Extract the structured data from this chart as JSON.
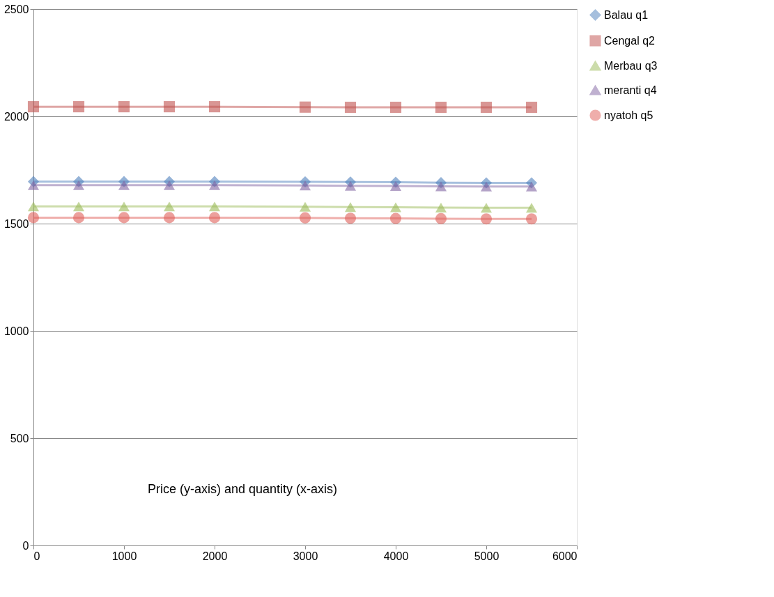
{
  "chart_data": {
    "type": "line",
    "x": [
      0,
      500,
      1000,
      1500,
      2000,
      3000,
      3500,
      4000,
      4500,
      5000,
      5500
    ],
    "series": [
      {
        "name": "Balau q1",
        "color": "#4f81bd",
        "marker": "diamond",
        "values": [
          1696,
          1696,
          1696,
          1696,
          1696,
          1695,
          1694,
          1693,
          1691,
          1690,
          1690
        ]
      },
      {
        "name": "Cengal q2",
        "color": "#c0504d",
        "marker": "square",
        "values": [
          2045,
          2045,
          2045,
          2045,
          2045,
          2043,
          2042,
          2042,
          2042,
          2042,
          2042
        ]
      },
      {
        "name": "Merbau q3",
        "color": "#9bbb59",
        "marker": "triangle",
        "values": [
          1580,
          1580,
          1580,
          1580,
          1580,
          1579,
          1577,
          1576,
          1575,
          1574,
          1574
        ]
      },
      {
        "name": "meranti q4",
        "color": "#8064a2",
        "marker": "triangle",
        "values": [
          1679,
          1679,
          1679,
          1679,
          1679,
          1678,
          1676,
          1675,
          1674,
          1673,
          1673
        ]
      },
      {
        "name": "nyatoh q5",
        "color": "#e0605a",
        "marker": "circle",
        "values": [
          1528,
          1528,
          1528,
          1528,
          1528,
          1527,
          1525,
          1524,
          1523,
          1522,
          1522
        ]
      }
    ],
    "xlim": [
      0,
      6000
    ],
    "xticks": [
      0,
      1000,
      2000,
      3000,
      4000,
      5000,
      6000
    ],
    "ylim": [
      0,
      2500
    ],
    "yticks": [
      0,
      500,
      1000,
      1500,
      2000,
      2500
    ],
    "grid": "y",
    "legend": "right",
    "line_style": "solid",
    "annotations": [
      "Price (y-axis) and quantity (x-axis)"
    ]
  }
}
